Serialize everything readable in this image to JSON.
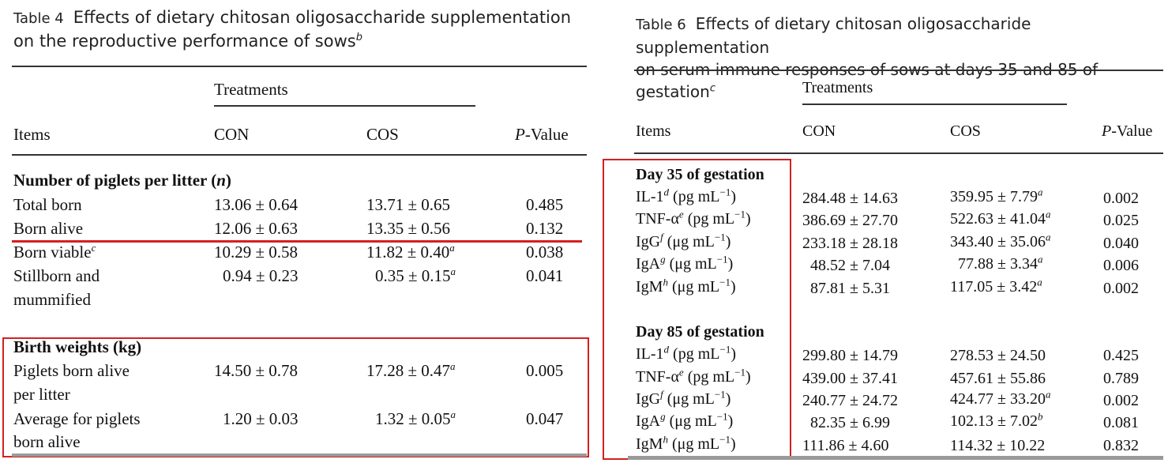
{
  "table4": {
    "label": "Table 4",
    "title_line1": "Effects of dietary chitosan oligosaccharide supplementation",
    "title_line2": "on the reproductive performance of sows",
    "title_sup": "b",
    "group_header": "Treatments",
    "col_items": "Items",
    "col_con": "CON",
    "col_cos": "COS",
    "col_p_italic": "P",
    "col_p_rest": "-Value",
    "section1": {
      "title": "Number of piglets per litter (",
      "title_n": "n",
      "title_end": ")"
    },
    "rows1": [
      {
        "name": "Total born",
        "sup": "",
        "con": "13.06 ± 0.64",
        "cos": "13.71 ± 0.65",
        "cos_sup": "",
        "p": "0.485"
      },
      {
        "name": "Born alive",
        "sup": "",
        "con": "12.06 ± 0.63",
        "cos": "13.35 ± 0.56",
        "cos_sup": "",
        "p": "0.132"
      },
      {
        "name": "Born viable",
        "sup": "c",
        "con": "10.29 ± 0.58",
        "cos": "11.82 ± 0.40",
        "cos_sup": "a",
        "p": "0.038"
      },
      {
        "name": "Stillborn and",
        "name2": "mummified",
        "sup": "",
        "con": "0.94 ± 0.23",
        "cos": "0.35 ± 0.15",
        "cos_sup": "a",
        "p": "0.041"
      }
    ],
    "section2": {
      "title": "Birth weights (kg)"
    },
    "rows2": [
      {
        "name": "Piglets born alive",
        "name2": "per litter",
        "con": "14.50 ± 0.78",
        "cos": "17.28 ± 0.47",
        "cos_sup": "a",
        "p": "0.005"
      },
      {
        "name": "Average for piglets",
        "name2": "born alive",
        "con": "1.20 ± 0.03",
        "cos": "1.32 ± 0.05",
        "cos_sup": "a",
        "p": "0.047"
      }
    ]
  },
  "table6": {
    "label": "Table 6",
    "title_line1": "Effects of dietary chitosan oligosaccharide supplementation",
    "title_line2": "on serum immune responses of sows at days 35 and 85 of gestation",
    "title_sup": "c",
    "group_header": "Treatments",
    "col_items": "Items",
    "col_con": "CON",
    "col_cos": "COS",
    "col_p_italic": "P",
    "col_p_rest": "-Value",
    "section1": "Day 35 of gestation",
    "rows1": [
      {
        "name": "IL-1",
        "sup": "d",
        "unit": " (pg mL",
        "exp": "−1",
        "con": "284.48 ± 14.63",
        "cos": "359.95 ± 7.79",
        "cos_sup": "a",
        "p": "0.002"
      },
      {
        "name": "TNF-α",
        "sup": "e",
        "unit": " (pg mL",
        "exp": "−1",
        "con": "386.69 ± 27.70",
        "cos": "522.63 ± 41.04",
        "cos_sup": "a",
        "p": "0.025"
      },
      {
        "name": "IgG",
        "sup": "f",
        "unit": " (μg mL",
        "exp": "−1",
        "con": "233.18 ± 28.18",
        "cos": "343.40 ± 35.06",
        "cos_sup": "a",
        "p": "0.040"
      },
      {
        "name": "IgA",
        "sup": "g",
        "unit": " (μg mL",
        "exp": "−1",
        "con": "48.52 ± 7.04",
        "cos": "77.88 ± 3.34",
        "cos_sup": "a",
        "p": "0.006"
      },
      {
        "name": "IgM",
        "sup": "h",
        "unit": " (μg mL",
        "exp": "−1",
        "con": "87.81 ± 5.31",
        "cos": "117.05 ± 3.42",
        "cos_sup": "a",
        "p": "0.002"
      }
    ],
    "section2": "Day 85 of gestation",
    "rows2": [
      {
        "name": "IL-1",
        "sup": "d",
        "unit": " (pg mL",
        "exp": "−1",
        "con": "299.80 ± 14.79",
        "cos": "278.53 ± 24.50",
        "cos_sup": "",
        "p": "0.425"
      },
      {
        "name": "TNF-α",
        "sup": "e",
        "unit": " (pg mL",
        "exp": "−1",
        "con": "439.00 ± 37.41",
        "cos": "457.61 ± 55.86",
        "cos_sup": "",
        "p": "0.789"
      },
      {
        "name": "IgG",
        "sup": "f",
        "unit": " (μg mL",
        "exp": "−1",
        "con": "240.77 ± 24.72",
        "cos": "424.77 ± 33.20",
        "cos_sup": "a",
        "p": "0.002"
      },
      {
        "name": "IgA",
        "sup": "g",
        "unit": " (μg mL",
        "exp": "−1",
        "con": "82.35 ± 6.99",
        "cos": "102.13 ± 7.02",
        "cos_sup": "b",
        "p": "0.081"
      },
      {
        "name": "IgM",
        "sup": "h",
        "unit": " (μg mL",
        "exp": "−1",
        "con": "111.86 ± 4.60",
        "cos": "114.32 ± 10.22",
        "cos_sup": "",
        "p": "0.832"
      }
    ]
  }
}
